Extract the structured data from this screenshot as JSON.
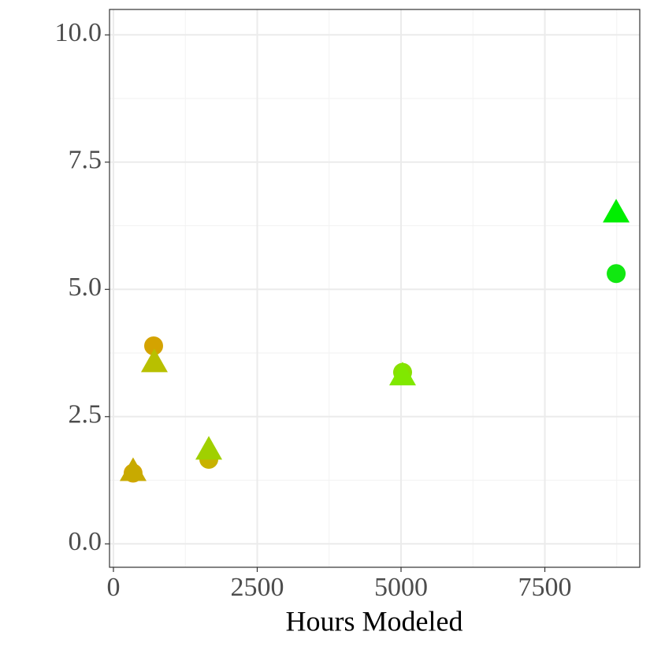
{
  "chart_data": {
    "type": "scatter",
    "x_label": "Hours Modeled",
    "xlim": [
      -68,
      9150
    ],
    "ylim": [
      -0.46,
      10.5
    ],
    "xticks": [
      0,
      2500,
      5000,
      7500
    ],
    "yticks": [
      {
        "value": 0,
        "label": "0.0"
      },
      2.5,
      {
        "value": 5,
        "label": "5.0"
      },
      7.5,
      {
        "value": 10,
        "label": "10.0"
      }
    ],
    "xminorticks": [
      1250,
      3750,
      6250,
      8750
    ],
    "yminorticks": [
      1.25,
      3.75,
      6.25,
      8.75
    ],
    "grid": true,
    "series": [
      {
        "marker": "circle",
        "x": [
          342,
          699,
          1658,
          5027,
          8740
        ],
        "values": [
          1.39,
          3.89,
          1.66,
          3.37,
          5.31
        ],
        "colors": [
          "#d4a600",
          "#d4a300",
          "#c8b200",
          "#88e000",
          "#11e811"
        ]
      },
      {
        "marker": "triangle",
        "x": [
          342,
          712,
          1658,
          5027,
          8740
        ],
        "values": [
          1.42,
          3.56,
          1.84,
          3.3,
          6.5
        ],
        "colors": [
          "#c8aa00",
          "#b8c000",
          "#a0d000",
          "#80e800",
          "#00ee00"
        ]
      }
    ]
  }
}
